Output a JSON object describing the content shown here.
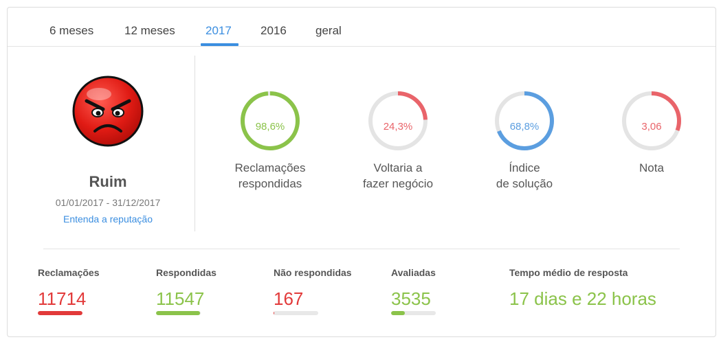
{
  "tabs": [
    {
      "label": "6 meses",
      "active": false
    },
    {
      "label": "12 meses",
      "active": false
    },
    {
      "label": "2017",
      "active": true
    },
    {
      "label": "2016",
      "active": false
    },
    {
      "label": "geral",
      "active": false
    }
  ],
  "reputation": {
    "label": "Ruim",
    "period": "01/01/2017 - 31/12/2017",
    "link": "Entenda a reputação",
    "face_icon": "angry-face-icon"
  },
  "gauges": [
    {
      "value_text": "98,6%",
      "fraction": 0.986,
      "color": "#8bc34a",
      "label_line1": "Reclamações",
      "label_line2": "respondidas"
    },
    {
      "value_text": "24,3%",
      "fraction": 0.243,
      "color": "#e9646a",
      "label_line1": "Voltaria a",
      "label_line2": "fazer negócio"
    },
    {
      "value_text": "68,8%",
      "fraction": 0.688,
      "color": "#5b9ee0",
      "label_line1": "Índice",
      "label_line2": "de solução"
    },
    {
      "value_text": "3,06",
      "fraction": 0.306,
      "color": "#e9646a",
      "label_line1": "Nota",
      "label_line2": ""
    }
  ],
  "stats": {
    "reclamacoes": {
      "label": "Reclamações",
      "value": "11714",
      "color": "#e23a3a",
      "fraction": 1.0
    },
    "respondidas": {
      "label": "Respondidas",
      "value": "11547",
      "color": "#8bc34a",
      "fraction": 0.986
    },
    "nao_respondidas": {
      "label": "Não respondidas",
      "value": "167",
      "color": "#e23a3a",
      "fraction": 0.014
    },
    "avaliadas": {
      "label": "Avaliadas",
      "value": "3535",
      "color": "#8bc34a",
      "fraction": 0.3
    },
    "tempo": {
      "label": "Tempo médio de resposta",
      "value": "17 dias e 22 horas",
      "color": "#8bc34a"
    }
  },
  "colors": {
    "accent": "#3b8ee0",
    "track": "#e4e4e4"
  }
}
